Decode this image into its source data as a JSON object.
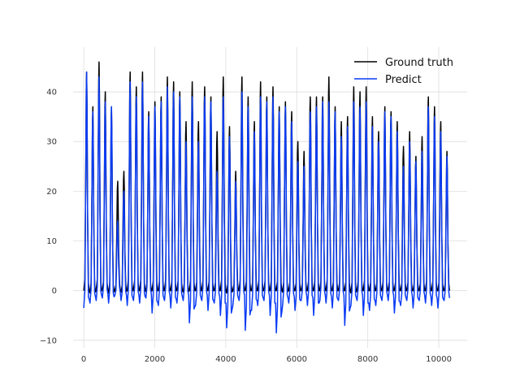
{
  "chart_data": {
    "type": "line",
    "title": "",
    "xlabel": "",
    "ylabel": "",
    "xlim": [
      -300,
      10800
    ],
    "ylim": [
      -11.5,
      49
    ],
    "xticks": [
      0,
      2000,
      4000,
      6000,
      8000,
      10000
    ],
    "yticks": [
      -10,
      0,
      10,
      20,
      30,
      40
    ],
    "xtick_labels": [
      "0",
      "2000",
      "4000",
      "6000",
      "8000",
      "10000"
    ],
    "ytick_labels": [
      "−10",
      "0",
      "10",
      "20",
      "30",
      "40"
    ],
    "grid": true,
    "legend_position": "top-right",
    "series": [
      {
        "name": "Ground truth",
        "color": "#000000",
        "x_start": 0,
        "x_step": 175,
        "peaks": [
          44,
          37,
          46,
          40,
          37,
          22,
          24,
          44,
          41,
          44,
          36,
          38,
          39,
          43,
          42,
          40,
          34,
          42,
          34,
          41,
          39,
          32,
          43,
          33,
          24,
          43,
          39,
          34,
          42,
          39,
          41,
          37,
          38,
          36,
          30,
          28,
          39,
          39,
          39,
          43,
          37,
          34,
          35,
          41,
          40,
          41,
          35,
          32,
          37,
          36,
          34,
          29,
          32,
          27,
          31,
          39,
          37,
          34,
          28,
          28
        ],
        "troughs": [
          0,
          -0.5,
          0,
          0,
          -0.5,
          0,
          -0.3,
          0,
          0,
          0,
          -0.2,
          0,
          0,
          0,
          0,
          0,
          -0.3,
          0,
          0,
          0,
          0,
          0,
          0,
          -0.5,
          0,
          0,
          0,
          0,
          0,
          0,
          0,
          0,
          -0.3,
          0,
          0,
          0,
          0,
          0,
          0,
          0,
          0,
          0,
          0,
          -0.5,
          0,
          0,
          0,
          0,
          0,
          0,
          0,
          0,
          0,
          0,
          0,
          0,
          0,
          0,
          0,
          0
        ]
      },
      {
        "name": "Predict",
        "color": "#0a3cf5",
        "x_start": 0,
        "x_step": 175,
        "peaks": [
          44,
          36,
          43,
          38,
          37,
          14,
          20,
          42,
          39,
          42,
          35,
          37,
          38,
          41,
          40,
          39,
          30,
          39,
          30,
          39,
          38,
          24,
          39,
          31,
          22,
          40,
          37,
          32,
          39,
          38,
          39,
          36,
          37,
          34,
          26,
          25,
          36,
          37,
          38,
          38,
          36,
          31,
          33,
          38,
          37,
          38,
          33,
          30,
          36,
          35,
          32,
          25,
          30,
          26,
          28,
          37,
          35,
          32,
          27,
          23
        ],
        "troughs": [
          -3.5,
          -2.5,
          -2,
          -1.5,
          -2.5,
          -1,
          -2,
          -3,
          -2,
          -2.5,
          -1.5,
          -4.5,
          -3,
          -2,
          -3.5,
          -2.5,
          -2,
          -6.5,
          -3,
          -2,
          -4,
          -2.5,
          -5,
          -7.5,
          -3,
          -2,
          -8,
          -4,
          -3,
          -2,
          -5,
          -8.5,
          -3,
          -2.5,
          -4,
          -2,
          -3,
          -5,
          -2,
          -2.5,
          -3.5,
          -2,
          -7,
          -3,
          -2,
          -5,
          -4,
          -3,
          -2,
          -2,
          -4.5,
          -3,
          -2,
          -3.5,
          -2,
          -2.5,
          -3,
          -3.5,
          -2,
          -1.5
        ]
      }
    ]
  }
}
